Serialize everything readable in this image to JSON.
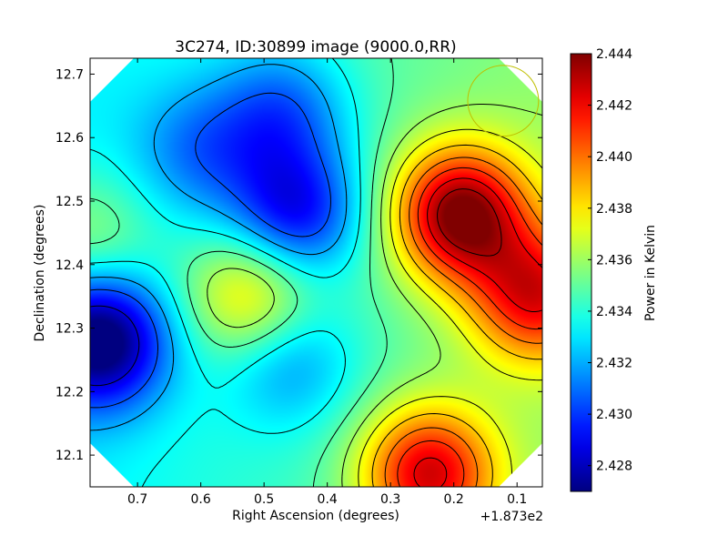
{
  "chart_data": {
    "type": "heatmap",
    "title": "3C274, ID:30899 image (9000.0,RR)",
    "xlabel": "Right Ascension (degrees)",
    "ylabel": "Declination (degrees)",
    "x_offset_label": "+1.873e2",
    "xlim": [
      0.775,
      0.06
    ],
    "ylim": [
      12.05,
      12.725
    ],
    "x_ticks": [
      0.7,
      0.6,
      0.5,
      0.4,
      0.3,
      0.2,
      0.1
    ],
    "x_tick_labels": [
      "0.7",
      "0.6",
      "0.5",
      "0.4",
      "0.3",
      "0.2",
      "0.1"
    ],
    "y_ticks": [
      12.1,
      12.2,
      12.3,
      12.4,
      12.5,
      12.6,
      12.7
    ],
    "y_tick_labels": [
      "12.1",
      "12.2",
      "12.3",
      "12.4",
      "12.5",
      "12.6",
      "12.7"
    ],
    "colorbar": {
      "label": "Power in Kelvin",
      "range": [
        2.427,
        2.444
      ],
      "ticks": [
        2.428,
        2.43,
        2.432,
        2.434,
        2.436,
        2.438,
        2.44,
        2.442,
        2.444
      ],
      "tick_labels": [
        "2.428",
        "2.430",
        "2.432",
        "2.434",
        "2.436",
        "2.438",
        "2.440",
        "2.442",
        "2.444"
      ],
      "colormap": "jet"
    },
    "features": [
      {
        "kind": "max",
        "x": 0.19,
        "y": 12.48,
        "value": 2.4435
      },
      {
        "kind": "max",
        "x": 0.24,
        "y": 12.07,
        "value": 2.442
      },
      {
        "kind": "max",
        "x": 0.52,
        "y": 12.35,
        "value": 2.439
      },
      {
        "kind": "max",
        "x": 0.78,
        "y": 12.44,
        "value": 2.437
      },
      {
        "kind": "max",
        "x": 0.07,
        "y": 12.35,
        "value": 2.441
      },
      {
        "kind": "min",
        "x": 0.76,
        "y": 12.28,
        "value": 2.427
      },
      {
        "kind": "min",
        "x": 0.47,
        "y": 12.64,
        "value": 2.431
      },
      {
        "kind": "min",
        "x": 0.45,
        "y": 12.48,
        "value": 2.429
      },
      {
        "kind": "min",
        "x": 0.46,
        "y": 12.25,
        "value": 2.4315
      },
      {
        "kind": "min",
        "x": 0.6,
        "y": 12.58,
        "value": 2.4318
      }
    ],
    "background_value": 2.4345,
    "contour_levels": [
      2.4285,
      2.4305,
      2.432,
      2.4335,
      2.4348,
      2.436,
      2.4372,
      2.4385,
      2.4398,
      2.441,
      2.4422,
      2.4433
    ],
    "footprint_circle": {
      "x": 0.122,
      "y": 12.658,
      "radius_deg": 0.056
    },
    "colors": {
      "circle": "#bfbf00",
      "contour": "#000000",
      "frame": "#000000"
    }
  }
}
